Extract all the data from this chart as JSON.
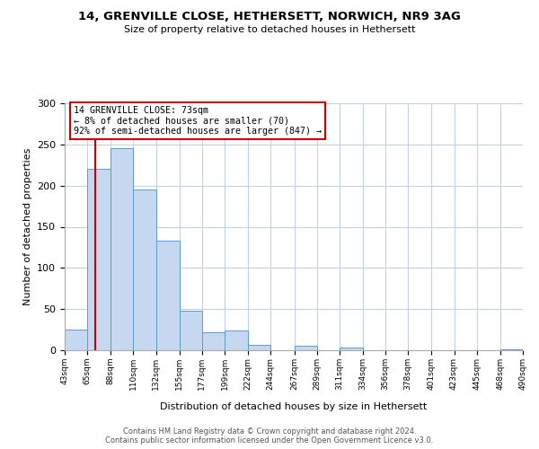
{
  "title": "14, GRENVILLE CLOSE, HETHERSETT, NORWICH, NR9 3AG",
  "subtitle": "Size of property relative to detached houses in Hethersett",
  "xlabel": "Distribution of detached houses by size in Hethersett",
  "ylabel": "Number of detached properties",
  "bar_edges": [
    43,
    65,
    88,
    110,
    132,
    155,
    177,
    199,
    222,
    244,
    267,
    289,
    311,
    334,
    356,
    378,
    401,
    423,
    445,
    468,
    490
  ],
  "bar_heights": [
    25,
    220,
    245,
    195,
    133,
    48,
    22,
    24,
    7,
    0,
    6,
    0,
    3,
    0,
    0,
    0,
    0,
    0,
    0,
    1
  ],
  "bar_color": "#c5d8f0",
  "bar_edge_color": "#5b9bd5",
  "property_line_x": 73,
  "property_line_color": "#cc0000",
  "annotation_text": "14 GRENVILLE CLOSE: 73sqm\n← 8% of detached houses are smaller (70)\n92% of semi-detached houses are larger (847) →",
  "annotation_box_color": "#ffffff",
  "annotation_box_edge_color": "#cc0000",
  "tick_labels": [
    "43sqm",
    "65sqm",
    "88sqm",
    "110sqm",
    "132sqm",
    "155sqm",
    "177sqm",
    "199sqm",
    "222sqm",
    "244sqm",
    "267sqm",
    "289sqm",
    "311sqm",
    "334sqm",
    "356sqm",
    "378sqm",
    "401sqm",
    "423sqm",
    "445sqm",
    "468sqm",
    "490sqm"
  ],
  "ylim": [
    0,
    300
  ],
  "yticks": [
    0,
    50,
    100,
    150,
    200,
    250,
    300
  ],
  "footer_line1": "Contains HM Land Registry data © Crown copyright and database right 2024.",
  "footer_line2": "Contains public sector information licensed under the Open Government Licence v3.0.",
  "background_color": "#ffffff",
  "grid_color": "#c0d0e8"
}
